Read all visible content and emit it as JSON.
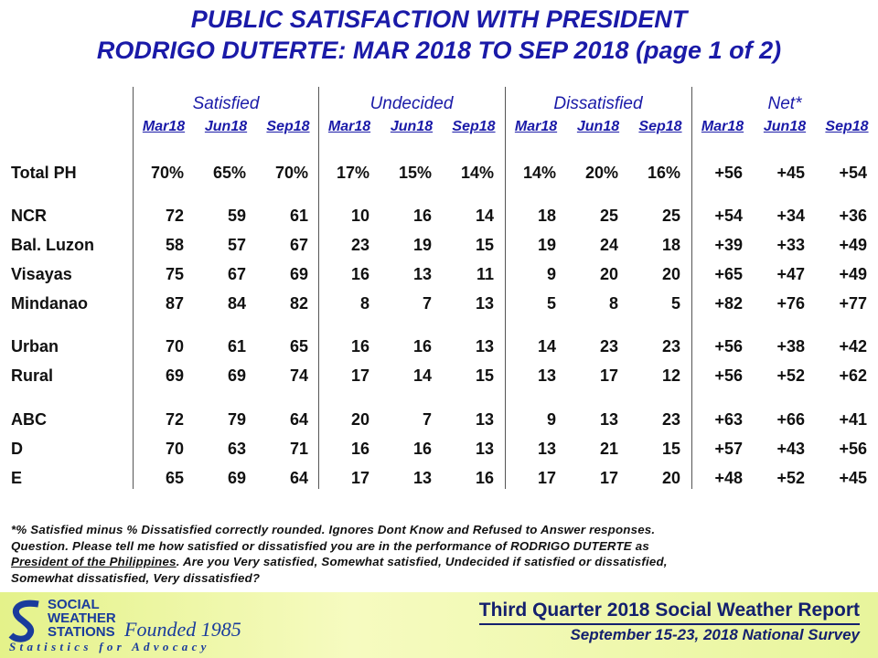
{
  "header": {
    "title": [
      "PUBLIC SATISFACTION  WITH PRESIDENT",
      "RODRIGO DUTERTE: MAR 2018 TO SEP 2018 (page 1 of 2)"
    ]
  },
  "table": {
    "groups": [
      "Satisfied",
      "Undecided",
      "Dissatisfied",
      "Net*"
    ],
    "subheaders": [
      "Mar18",
      "Jun18",
      "Sep18",
      "Mar18",
      "Jun18",
      "Sep18",
      "Mar18",
      "Jun18",
      "Sep18",
      "Mar18",
      "Jun18",
      "Sep18"
    ],
    "rows": [
      [
        "Total PH",
        "70%",
        "65%",
        "70%",
        "17%",
        "15%",
        "14%",
        "14%",
        "20%",
        "16%",
        "+56",
        "+45",
        "+54"
      ],
      [
        "NCR",
        "72",
        "59",
        "61",
        "10",
        "16",
        "14",
        "18",
        "25",
        "25",
        "+54",
        "+34",
        "+36"
      ],
      [
        "Bal. Luzon",
        "58",
        "57",
        "67",
        "23",
        "19",
        "15",
        "19",
        "24",
        "18",
        "+39",
        "+33",
        "+49"
      ],
      [
        "Visayas",
        "75",
        "67",
        "69",
        "16",
        "13",
        "11",
        "9",
        "20",
        "20",
        "+65",
        "+47",
        "+49"
      ],
      [
        "Mindanao",
        "87",
        "84",
        "82",
        "8",
        "7",
        "13",
        "5",
        "8",
        "5",
        "+82",
        "+76",
        "+77"
      ],
      [
        "Urban",
        "70",
        "61",
        "65",
        "16",
        "16",
        "13",
        "14",
        "23",
        "23",
        "+56",
        "+38",
        "+42"
      ],
      [
        "Rural",
        "69",
        "69",
        "74",
        "17",
        "14",
        "15",
        "13",
        "17",
        "12",
        "+56",
        "+52",
        "+62"
      ],
      [
        "ABC",
        "72",
        "79",
        "64",
        "20",
        "7",
        "13",
        "9",
        "13",
        "23",
        "+63",
        "+66",
        "+41"
      ],
      [
        "D",
        "70",
        "63",
        "71",
        "16",
        "16",
        "13",
        "13",
        "21",
        "15",
        "+57",
        "+43",
        "+56"
      ],
      [
        "E",
        "65",
        "69",
        "64",
        "17",
        "13",
        "16",
        "17",
        "17",
        "20",
        "+48",
        "+52",
        "+45"
      ]
    ]
  },
  "footnote": {
    "lines": [
      [
        "*% Satisfied  minus  % Dissatisfied  correctly  rounded.  Ignores  Dont  Know  and  Refused  to  Answer  responses."
      ],
      [
        "Question.  Please  tell  me  how  satisfied  or  dissatisfied  you  are  in  the  performance  of  RODRIGO  DUTERTE  as"
      ],
      [
        "President  of  the  Philippines",
        ".  Are  you  Very  satisfied,  Somewhat  satisfied,  Undecided  if  satisfied  or  dissatisfied,"
      ],
      [
        "Somewhat  dissatisfied,  Very  dissatisfied?"
      ]
    ]
  },
  "footer": {
    "logo": [
      "SOCIAL",
      "WEATHER",
      "STATIONS"
    ],
    "founded": "Founded 1985",
    "tagline": "Statistics for Advocacy",
    "report": "Third Quarter 2018 Social Weather Report",
    "survey": "September 15-23, 2018 National Survey"
  }
}
